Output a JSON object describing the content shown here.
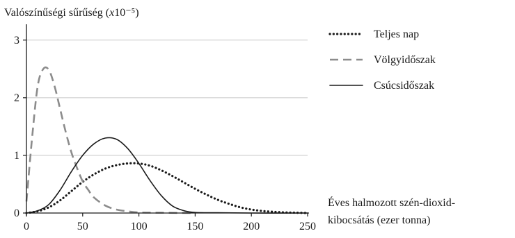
{
  "chart_data": {
    "type": "line",
    "title": "",
    "ylabel": "Valószínűségi sűrűség (x10⁻⁵)",
    "ylabel_prefix": "Valószínűségi sűrűség (",
    "ylabel_var": "x",
    "ylabel_suffix": "10⁻⁵)",
    "xlabel_line1": "Éves halmozott szén-dioxid-",
    "xlabel_line2": "kibocsátás (ezer tonna)",
    "xlim": [
      0,
      250
    ],
    "ylim": [
      0,
      3.25
    ],
    "xticks": [
      0,
      50,
      100,
      150,
      200,
      250
    ],
    "yticks": [
      0,
      1,
      2,
      3
    ],
    "grid": "horizontal",
    "legend_position": "right",
    "series": [
      {
        "name": "Teljes nap",
        "style": "dotted",
        "color": "#1a1a1a",
        "x": [
          0,
          10,
          20,
          30,
          40,
          50,
          60,
          70,
          80,
          90,
          100,
          110,
          120,
          130,
          140,
          150,
          160,
          170,
          180,
          190,
          200,
          210,
          220,
          230,
          240,
          250
        ],
        "y": [
          0,
          0.03,
          0.1,
          0.22,
          0.38,
          0.54,
          0.67,
          0.77,
          0.83,
          0.86,
          0.86,
          0.82,
          0.74,
          0.64,
          0.53,
          0.42,
          0.32,
          0.23,
          0.16,
          0.1,
          0.06,
          0.035,
          0.02,
          0.01,
          0.005,
          0.0
        ]
      },
      {
        "name": "Völgyidőszak",
        "style": "dashed",
        "color": "#8c8c8c",
        "x": [
          0,
          5,
          10,
          15,
          20,
          25,
          30,
          35,
          40,
          45,
          50,
          55,
          60,
          70,
          80,
          90,
          100,
          120,
          150
        ],
        "y": [
          0.2,
          1.3,
          2.2,
          2.5,
          2.48,
          2.2,
          1.8,
          1.4,
          1.05,
          0.78,
          0.55,
          0.4,
          0.27,
          0.13,
          0.06,
          0.03,
          0.01,
          0.005,
          0
        ]
      },
      {
        "name": "Csúcsidőszak",
        "style": "solid",
        "color": "#1a1a1a",
        "x": [
          0,
          10,
          20,
          30,
          40,
          50,
          60,
          70,
          80,
          90,
          100,
          110,
          120,
          130,
          140,
          150,
          170,
          200,
          250
        ],
        "y": [
          0,
          0.04,
          0.15,
          0.4,
          0.72,
          1.0,
          1.2,
          1.3,
          1.28,
          1.12,
          0.86,
          0.56,
          0.3,
          0.12,
          0.04,
          0.01,
          0.005,
          0.0,
          0.0
        ]
      }
    ]
  }
}
